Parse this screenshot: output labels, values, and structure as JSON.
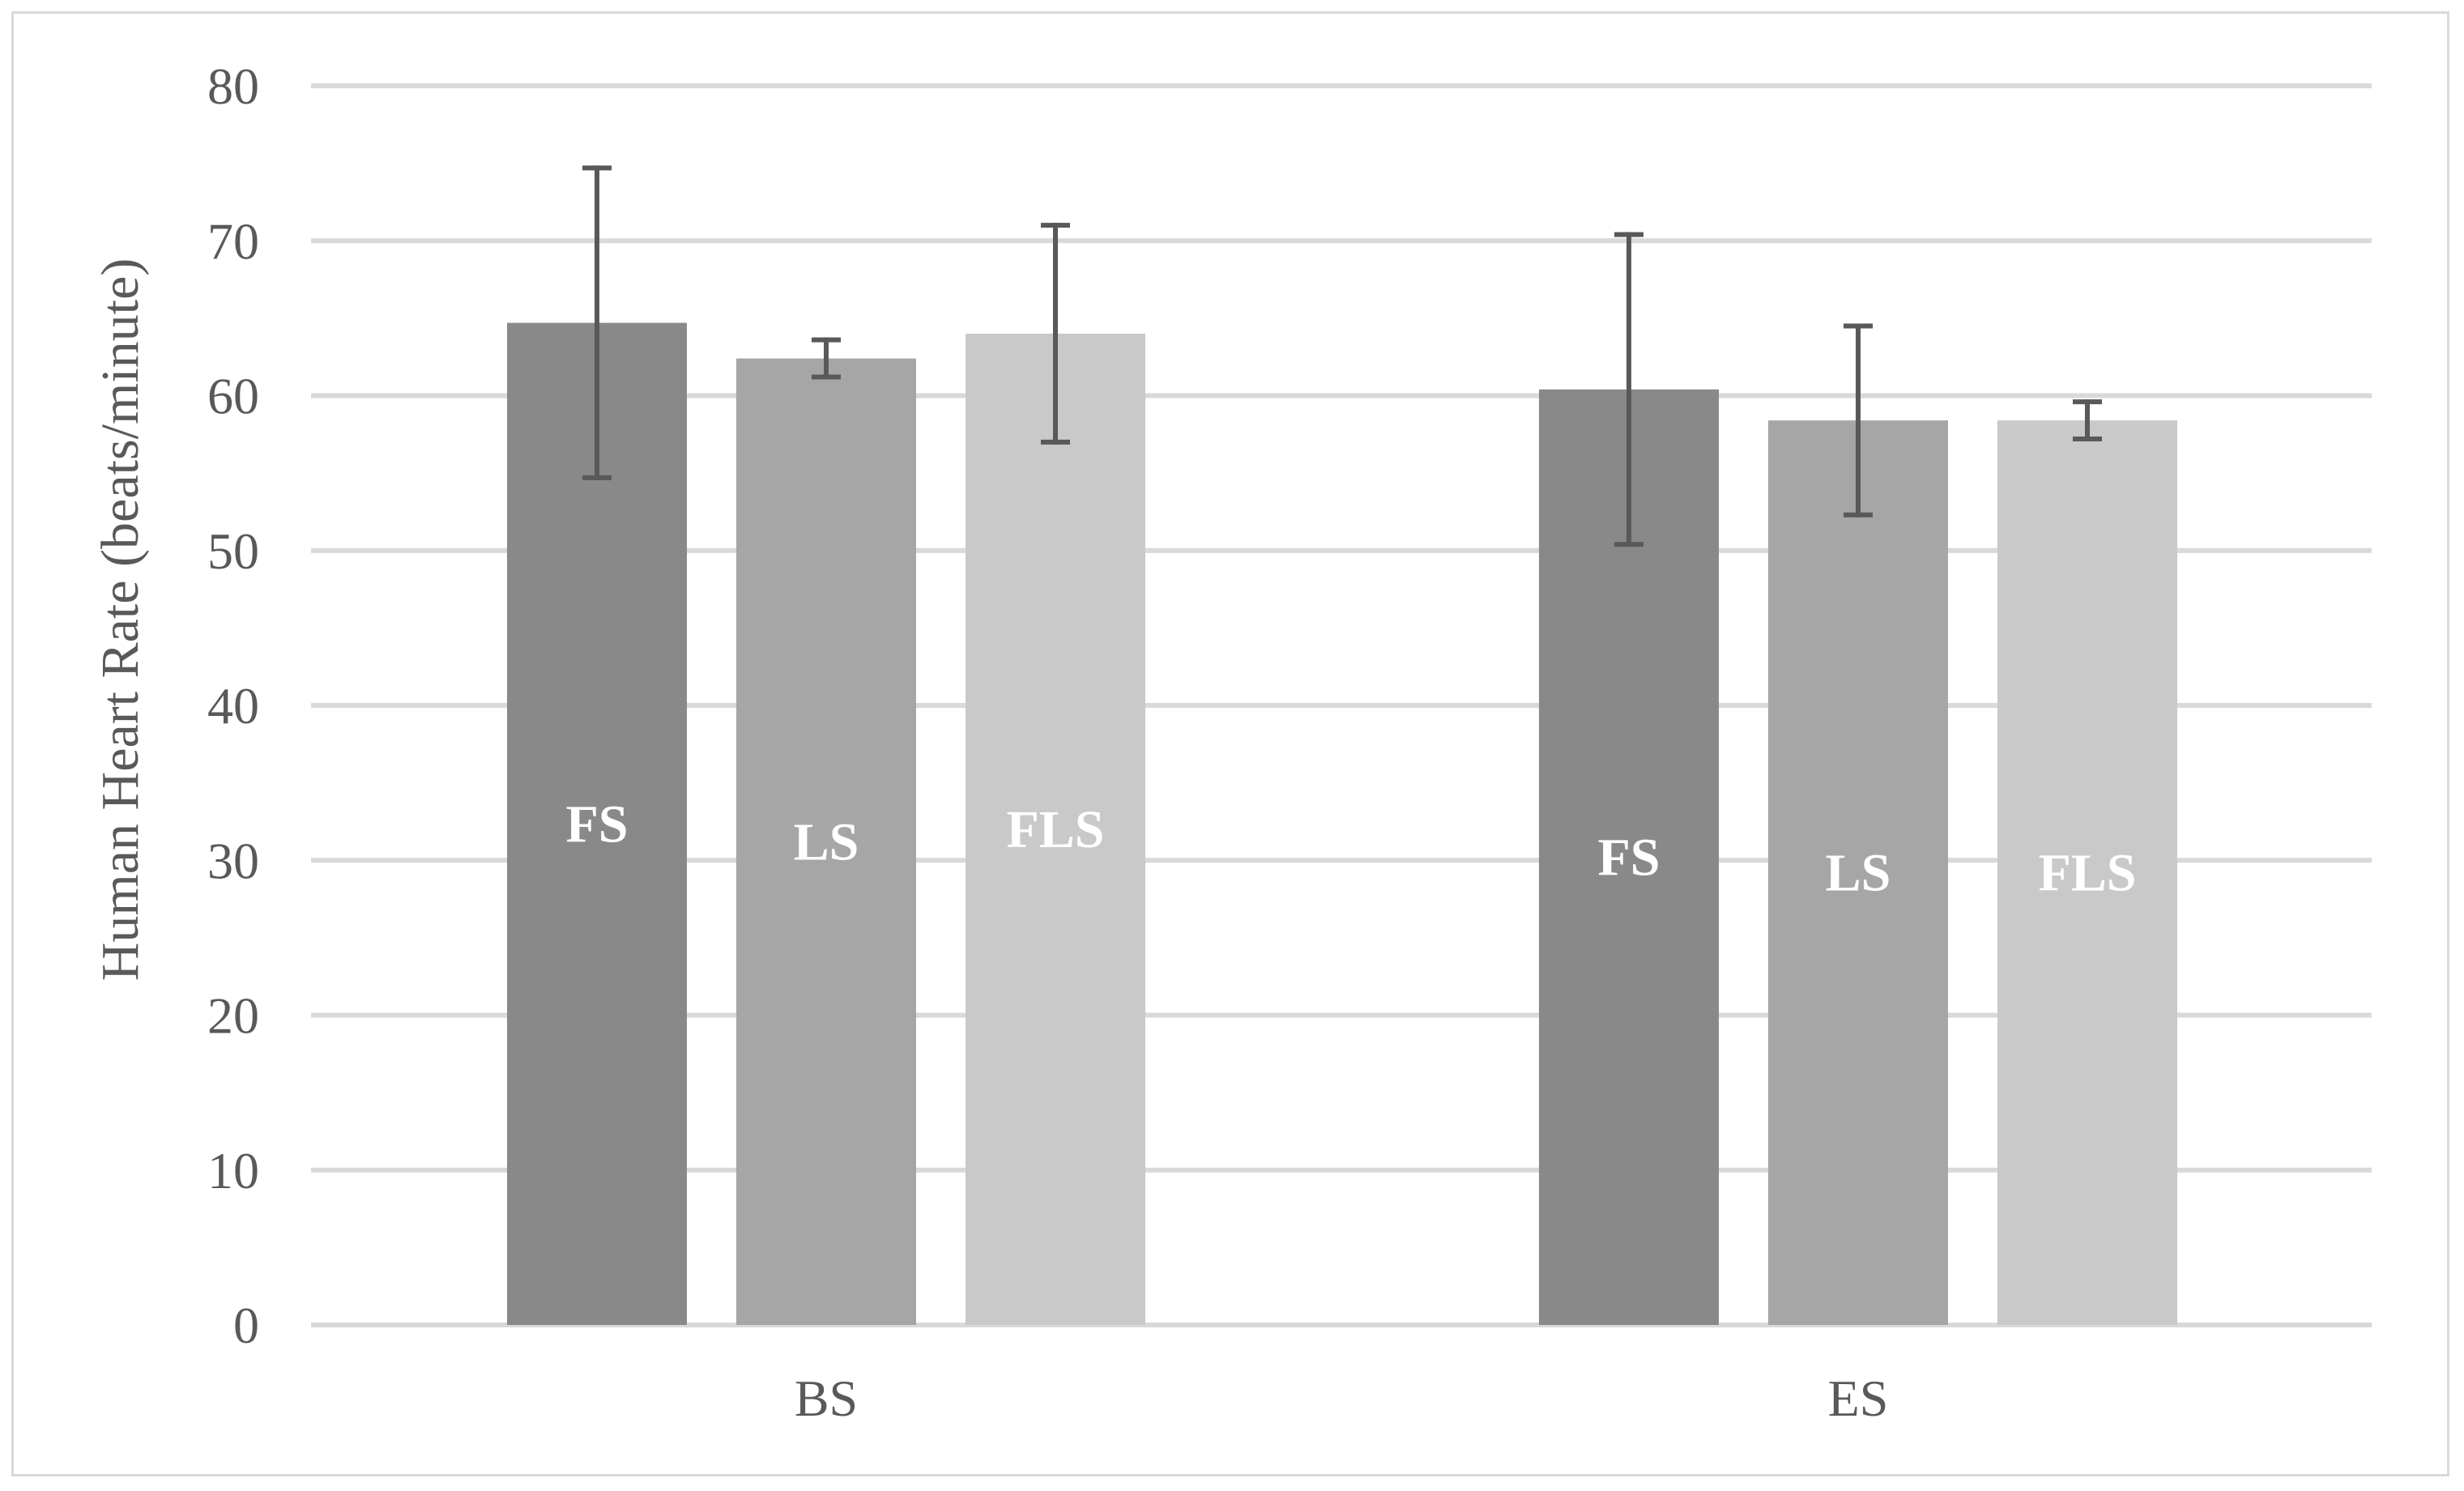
{
  "chart_data": {
    "type": "bar",
    "categories": [
      "BS",
      "ES"
    ],
    "series": [
      {
        "bar_label": "FS",
        "color": "#898989",
        "values": [
          64.7,
          60.4
        ],
        "error": [
          10.0,
          10.0
        ]
      },
      {
        "bar_label": "LS",
        "color": "#a6a6a6",
        "values": [
          62.4,
          58.4
        ],
        "error": [
          1.2,
          6.1
        ]
      },
      {
        "bar_label": "FLS",
        "color": "#c9c9c9",
        "values": [
          64.0,
          58.4
        ],
        "error": [
          7.0,
          1.2
        ]
      }
    ],
    "xlabel": "",
    "ylabel": "Human Heart Rate (beats/minute)",
    "ylim": [
      0,
      80
    ],
    "yticks": [
      0,
      10,
      20,
      30,
      40,
      50,
      60,
      70,
      80
    ],
    "grid": true,
    "legend": "none"
  },
  "colors": {
    "gridline": "#d9d9d9",
    "error_bar": "#595959",
    "tick_text": "#595959",
    "bar_label_text": "#ffffff"
  }
}
